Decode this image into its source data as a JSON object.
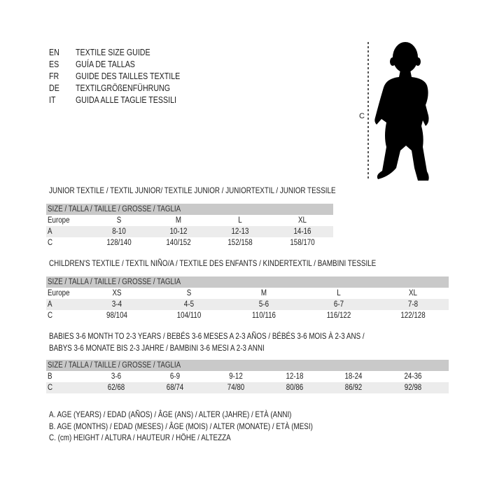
{
  "languages": [
    {
      "code": "EN",
      "text": "TEXTILE SIZE GUIDE"
    },
    {
      "code": "ES",
      "text": "GUÍA DE TALLAS"
    },
    {
      "code": "FR",
      "text": "GUIDE DES TAILLES TEXTILE"
    },
    {
      "code": "DE",
      "text": "TEXTILGRÖßENFÜHRUNG"
    },
    {
      "code": "IT",
      "text": "GUIDA ALLE TAGLIE TESSILI"
    }
  ],
  "figure": {
    "measure_label": "C",
    "silhouette": "child-silhouette"
  },
  "junior": {
    "title": "JUNIOR TEXTILE / TEXTIL JUNIOR/ TEXTILE JUNIOR / JUNIORTEXTIL / JUNIOR TESSILE",
    "header": "SIZE / TALLA / TAILLE / GRÖSSE / TAGLIA",
    "rows": [
      {
        "label": "Europe",
        "values": [
          "S",
          "M",
          "L",
          "XL"
        ]
      },
      {
        "label": "A",
        "values": [
          "8-10",
          "10-12",
          "12-13",
          "14-16"
        ]
      },
      {
        "label": "C",
        "values": [
          "128/140",
          "140/152",
          "152/158",
          "158/170"
        ]
      }
    ]
  },
  "children": {
    "title": "CHILDREN'S TEXTILE / TEXTIL NIÑO/A / TEXTILE DES ENFANTS / KINDERTEXTIL / BAMBINI TESSILE",
    "header": "SIZE / TALLA / TAILLE / GRÖSSE / TAGLIA",
    "rows": [
      {
        "label": "Europe",
        "values": [
          "XS",
          "S",
          "M",
          "L",
          "XL"
        ]
      },
      {
        "label": "A",
        "values": [
          "3-4",
          "4-5",
          "5-6",
          "6-7",
          "7-8"
        ]
      },
      {
        "label": "C",
        "values": [
          "98/104",
          "104/110",
          "110/116",
          "116/122",
          "122/128"
        ]
      }
    ]
  },
  "babies": {
    "title_line1": "BABIES 3-6 MONTH TO 2-3 YEARS / BEBÉS 3-6 MESES A 2-3 AÑOS / BÉBÉS 3-6 MOIS À 2-3 ANS /",
    "title_line2": "BABYS 3-6 MONATE BIS 2-3 JAHRE / BAMBINI 3-6 MESI A 2-3 ANNI",
    "header": "SIZE / TALLA / TAILLE / GRÖSSE / TAGLIA",
    "rows": [
      {
        "label": "B",
        "values": [
          "3-6",
          "6-9",
          "9-12",
          "12-18",
          "18-24",
          "24-36"
        ]
      },
      {
        "label": "C",
        "values": [
          "62/68",
          "68/74",
          "74/80",
          "80/86",
          "86/92",
          "92/98"
        ]
      }
    ]
  },
  "legend": [
    "A. AGE (YEARS) / EDAD (AÑOS) / ÂGE (ANS) / ALTER (JAHRE) / ETÀ (ANNI)",
    "B. AGE (MONTHS) / EDAD (MESES) / ÂGE (MOIS) / ALTER (MONATE) / ETÀ (MESI)",
    "C. (cm) HEIGHT / ALTURA / HAUTEUR / HÖHE / ALTEZZA"
  ]
}
